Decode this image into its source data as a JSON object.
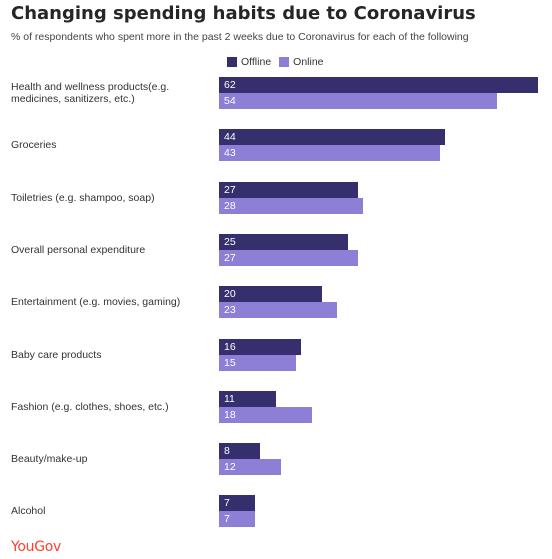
{
  "chart_data": {
    "type": "bar",
    "orientation": "horizontal",
    "title": "Changing spending habits due to Coronavirus",
    "subtitle": "% of respondents who spent more in the past 2 weeks due to Coronavirus for each of the following",
    "categories": [
      "Health and wellness products(e.g. medicines, sanitizers, etc.)",
      "Groceries",
      "Toiletries (e.g. shampoo, soap)",
      "Overall personal expenditure",
      "Entertainment (e.g. movies, gaming)",
      "Baby care products",
      "Fashion (e.g. clothes, shoes, etc.)",
      "Beauty/make-up",
      "Alcohol"
    ],
    "series": [
      {
        "name": "Offline",
        "color": "#35306d",
        "values": [
          62,
          44,
          27,
          25,
          20,
          16,
          11,
          8,
          7
        ]
      },
      {
        "name": "Online",
        "color": "#8e7fd6",
        "values": [
          54,
          43,
          28,
          27,
          23,
          15,
          18,
          12,
          7
        ]
      }
    ],
    "xlim": [
      0,
      62
    ],
    "legend_position": "top",
    "grid": false,
    "data_labels": true
  },
  "brand": {
    "logo_text": "YouGov",
    "logo_color": "#ff412c"
  }
}
